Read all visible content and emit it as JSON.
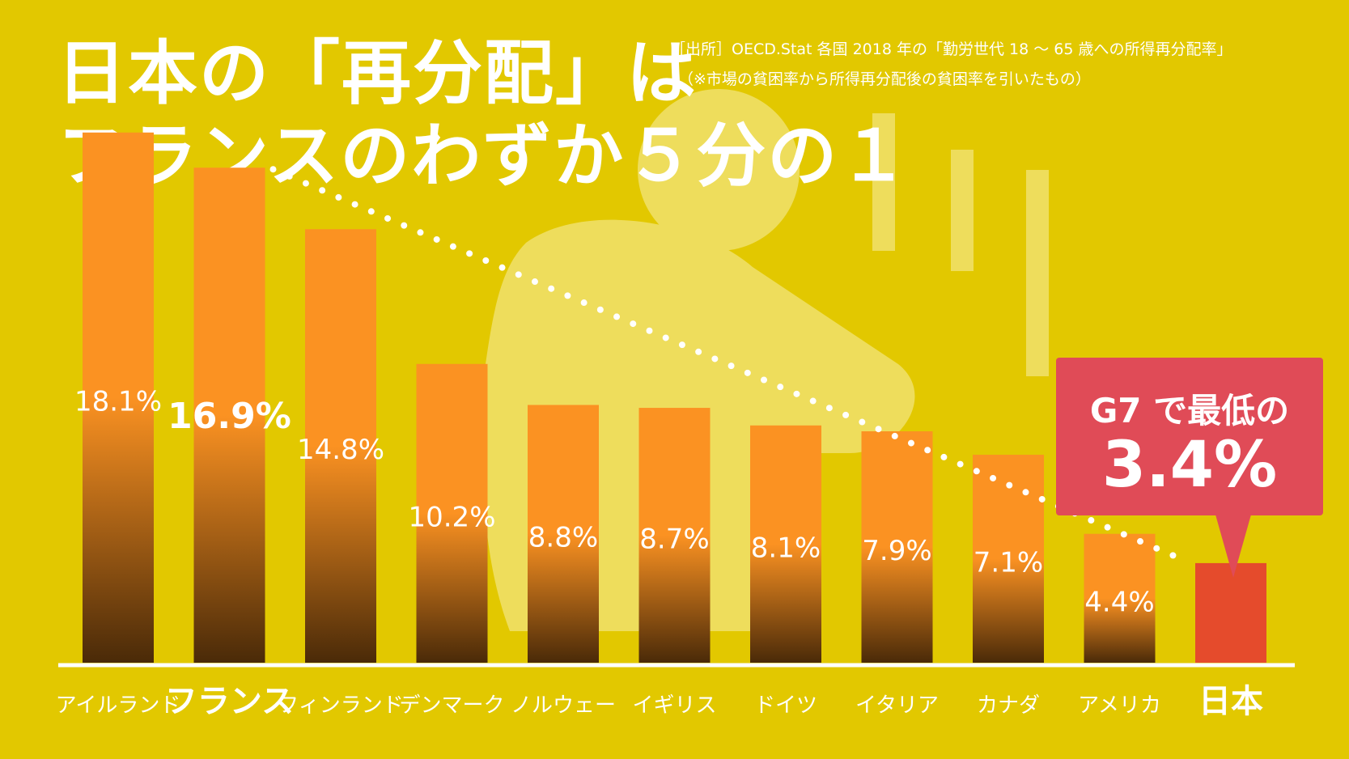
{
  "title": {
    "line1": "日本の「再分配」は",
    "line2": "フランスのわずか５分の１"
  },
  "source": {
    "line1": "［出所］OECD.Stat 各国 2018 年の「勤労世代 18 ～ 65 歳への所得再分配率」",
    "line2": "（※市場の貧困率から所得再分配後の貧困率を引いたもの）"
  },
  "callout": {
    "line1": "G7 で最低の",
    "line2": "3.4%"
  },
  "colors": {
    "background": "#e2c800",
    "bar_top": "#fb9222",
    "bar_bottom": "#4a2a08",
    "japan_bar": "#e54b2c",
    "callout": "#e04b57",
    "text": "#ffffff"
  },
  "chart_data": {
    "type": "bar",
    "categories": [
      "アイルランド",
      "フランス",
      "フィンランド",
      "デンマーク",
      "ノルウェー",
      "イギリス",
      "ドイツ",
      "イタリア",
      "カナダ",
      "アメリカ",
      "日本"
    ],
    "values": [
      18.1,
      16.9,
      14.8,
      10.2,
      8.8,
      8.7,
      8.1,
      7.9,
      7.1,
      4.4,
      3.4
    ],
    "data_labels": [
      "18.1%",
      "16.9%",
      "14.8%",
      "10.2%",
      "8.8%",
      "8.7%",
      "8.1%",
      "7.9%",
      "7.1%",
      "4.4%",
      ""
    ],
    "highlight": [
      "フランス",
      "日本"
    ],
    "trend_line": {
      "from": "フランス",
      "to": "日本",
      "style": "dotted"
    },
    "ylim": [
      0,
      20
    ],
    "grid": false
  }
}
